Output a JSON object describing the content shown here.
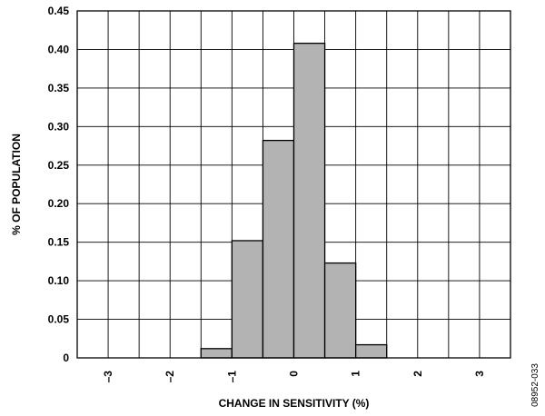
{
  "chart_data": {
    "type": "bar",
    "xlabel": "CHANGE IN SENSITIVITY (%)",
    "ylabel": "% OF POPULATION",
    "xlim": [
      -3.5,
      3.5
    ],
    "ylim": [
      0,
      0.45
    ],
    "grid": true,
    "x_ticks": [
      -3,
      -2,
      -1,
      0,
      1,
      2,
      3
    ],
    "x_tick_labels": [
      "–3",
      "–2",
      "–1",
      "0",
      "1",
      "2",
      "3"
    ],
    "y_ticks": [
      0,
      0.05,
      0.1,
      0.15,
      0.2,
      0.25,
      0.3,
      0.35,
      0.4,
      0.45
    ],
    "y_tick_labels": [
      "0",
      "0.05",
      "0.10",
      "0.15",
      "0.20",
      "0.25",
      "0.30",
      "0.35",
      "0.40",
      "0.45"
    ],
    "bar_width": 0.5,
    "bars": [
      {
        "x": -1.25,
        "value": 0.012
      },
      {
        "x": -0.75,
        "value": 0.152
      },
      {
        "x": -0.25,
        "value": 0.282
      },
      {
        "x": 0.25,
        "value": 0.408
      },
      {
        "x": 0.75,
        "value": 0.123
      },
      {
        "x": 1.25,
        "value": 0.017
      }
    ],
    "colors": {
      "bar_fill": "#b3b3b3",
      "bar_stroke": "#000000",
      "grid": "#000000"
    }
  },
  "figure_id": "08952-033"
}
